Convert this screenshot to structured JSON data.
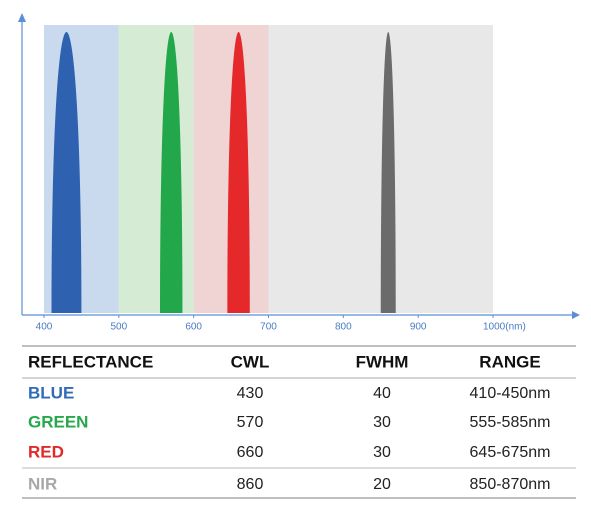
{
  "chart_data": {
    "type": "spectrum",
    "xlim": [
      400,
      1000
    ],
    "xticks": [
      400,
      500,
      600,
      700,
      800,
      900,
      {
        "value": 1000,
        "label": "1000(nm)"
      }
    ],
    "regions": [
      {
        "from": 400,
        "to": 500,
        "color": "#c9d9ee"
      },
      {
        "from": 500,
        "to": 600,
        "color": "#d5ebd3"
      },
      {
        "from": 600,
        "to": 700,
        "color": "#f0d4d4"
      },
      {
        "from": 700,
        "to": 1000,
        "color": "#e8e8e8"
      }
    ]
  },
  "table": {
    "headers": [
      "REFLECTANCE",
      "CWL",
      "FWHM",
      "RANGE"
    ],
    "rows": [
      {
        "name": "BLUE",
        "color": "#2f6bb8",
        "peak_color": "#2e62b0",
        "cwl": 430,
        "fwhm": 40,
        "range": "410-450nm"
      },
      {
        "name": "GREEN",
        "color": "#27a84c",
        "peak_color": "#22a84a",
        "cwl": 570,
        "fwhm": 30,
        "range": "555-585nm"
      },
      {
        "name": "RED",
        "color": "#e3282a",
        "peak_color": "#e5282a",
        "cwl": 660,
        "fwhm": 30,
        "range": "645-675nm"
      },
      {
        "name": "NIR",
        "color": "#a8a8a8",
        "peak_color": "#6b6b6b",
        "cwl": 860,
        "fwhm": 20,
        "range": "850-870nm"
      }
    ]
  }
}
